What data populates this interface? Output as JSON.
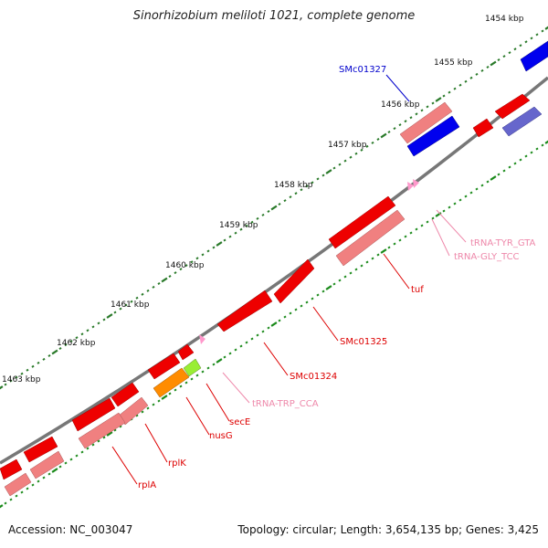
{
  "title": "Sinorhizobium meliloti 1021, complete genome",
  "footer": {
    "accession": "Accession: NC_003047",
    "summary": "Topology: circular; Length: 3,654,135 bp; Genes: 3,425"
  },
  "colors": {
    "backbone": "#777777",
    "cds_forward": "#ff0000",
    "cds_reverse": "#f08080",
    "rna": "#ff99cc",
    "tick_outer": "#2a7a2a",
    "tick_inner": "#1a8a1a",
    "orange_gene": "#ff8c00",
    "green_gene": "#99ee33",
    "blue_gene": "#0000ee",
    "blue_light": "#6666cc",
    "label_red": "#dd0000",
    "label_pink": "#ee88aa",
    "label_blue": "#0000cc"
  },
  "kbp_labels": [
    "1454 kbp",
    "1455 kbp",
    "1456 kbp",
    "1457 kbp",
    "1458 kbp",
    "1459 kbp",
    "1460 kbp",
    "1461 kbp",
    "1462 kbp",
    "1463 kbp"
  ],
  "feature_labels": {
    "smc01327": "SMc01327",
    "trna_tyr": "tRNA-TYR_GTA",
    "trna_gly": "tRNA-GLY_TCC",
    "tuf": "tuf",
    "smc01325": "SMc01325",
    "smc01324": "SMc01324",
    "trna_trp": "tRNA-TRP_CCA",
    "sece": "secE",
    "nusg": "nusG",
    "rplk": "rplK",
    "rpla": "rplA"
  }
}
